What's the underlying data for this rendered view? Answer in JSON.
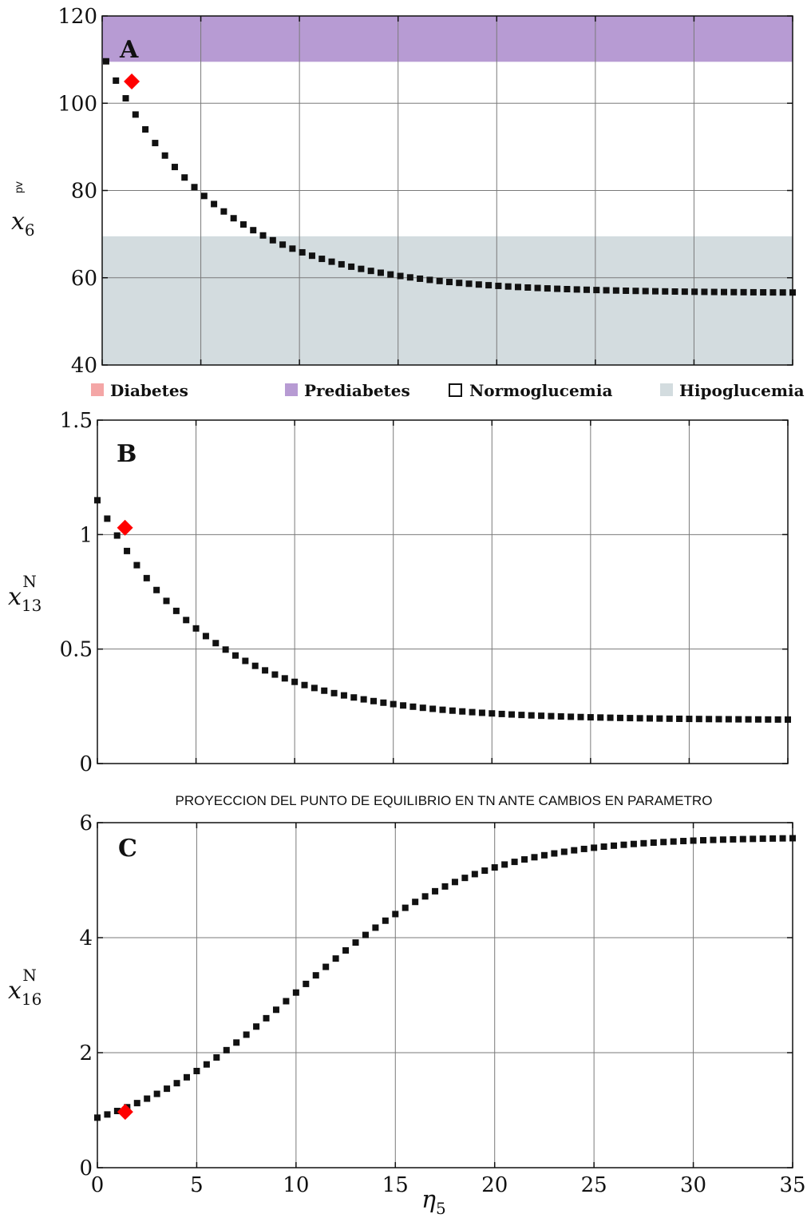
{
  "caption": "PROYECCION DEL PUNTO DE EQUILIBRIO EN TN ANTE CAMBIOS EN PARAMETRO",
  "legend": [
    {
      "label": "Diabetes",
      "color": "#f4a6a6",
      "outline": false
    },
    {
      "label": "Prediabetes",
      "color": "#b79bd3",
      "outline": false
    },
    {
      "label": "Normoglucemia",
      "color": "#ffffff",
      "outline": true
    },
    {
      "label": "Hipoglucemia",
      "color": "#d3dcdf",
      "outline": false
    }
  ],
  "colors": {
    "marker": "#111111",
    "highlight": "#ff0000",
    "grid": "#7a7a7a"
  },
  "chart_data": [
    {
      "type": "scatter",
      "panel_label": "A",
      "ylabel": {
        "base": "x",
        "sub": "6",
        "sup": "pv"
      },
      "xlabel": "",
      "xlim": [
        0,
        35
      ],
      "ylim": [
        40,
        120
      ],
      "xticks": [],
      "yticks": [
        "40",
        "60",
        "80",
        "100",
        "120"
      ],
      "ytick_values": [
        40,
        60,
        80,
        100,
        120
      ],
      "grid": true,
      "bands": [
        {
          "name": "Prediabetes",
          "y0": 109.5,
          "y1": 120,
          "color": "#b79bd3"
        },
        {
          "name": "Hipoglucemia",
          "y0": 40,
          "y1": 69.5,
          "color": "#d3dcdf"
        }
      ],
      "highlight": {
        "x": 1.5,
        "y": 105
      },
      "series": [
        {
          "x0": 0.2,
          "x1": 35,
          "curve": "decay",
          "y_start": 111.5,
          "y_end": 56.5,
          "rate": 0.175,
          "n": 71
        }
      ]
    },
    {
      "type": "scatter",
      "panel_label": "B",
      "ylabel": {
        "base": "x",
        "sub": "13",
        "sup": "N"
      },
      "xlabel": "",
      "xlim": [
        0,
        35
      ],
      "ylim": [
        0,
        1.5
      ],
      "xticks": [],
      "yticks": [
        "0",
        "0.5",
        "1",
        "1.5"
      ],
      "ytick_values": [
        0,
        0.5,
        1,
        1.5
      ],
      "grid": true,
      "bands": [],
      "highlight": {
        "x": 1.4,
        "y": 1.03
      },
      "series": [
        {
          "x0": 0,
          "x1": 35,
          "curve": "decay",
          "y_start": 1.15,
          "y_end": 0.19,
          "rate": 0.175,
          "n": 71
        }
      ]
    },
    {
      "type": "scatter",
      "panel_label": "C",
      "ylabel": {
        "base": "x",
        "sub": "16",
        "sup": "N"
      },
      "xlabel": "η",
      "xlabel_sub": "5",
      "xlim": [
        0,
        35
      ],
      "ylim": [
        0,
        6
      ],
      "xticks": [
        "0",
        "5",
        "10",
        "15",
        "20",
        "25",
        "30",
        "35"
      ],
      "xtick_values": [
        0,
        5,
        10,
        15,
        20,
        25,
        30,
        35
      ],
      "yticks": [
        "0",
        "2",
        "4",
        "6"
      ],
      "ytick_values": [
        0,
        2,
        4,
        6
      ],
      "grid": true,
      "bands": [],
      "highlight": {
        "x": 1.4,
        "y": 0.97
      },
      "series": [
        {
          "x0": 0,
          "x1": 35,
          "curve": "sigmoid",
          "y_start": 0.87,
          "y_end": 5.75,
          "mid": 10,
          "width": 4.5,
          "n": 71
        }
      ]
    }
  ]
}
